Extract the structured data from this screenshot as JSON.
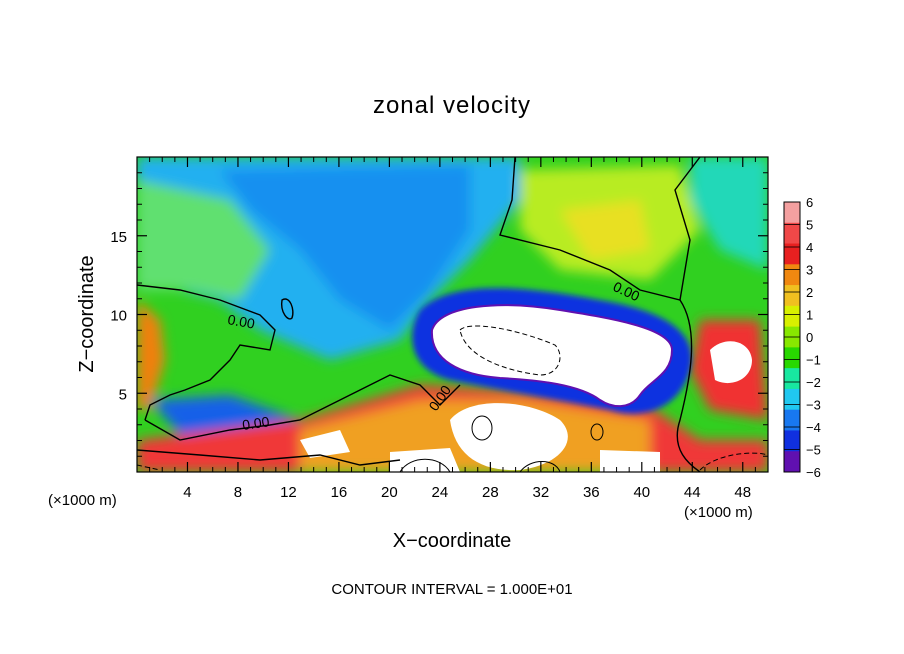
{
  "chart_data": {
    "type": "heatmap",
    "title": "zonal velocity",
    "xlabel": "X−coordinate",
    "ylabel": "Z−coordinate",
    "x_unit_left": "(×1000 m)",
    "x_unit_right": "(×1000 m)",
    "footer": "CONTOUR INTERVAL = 1.000E+01",
    "xlim": [
      0,
      50
    ],
    "ylim": [
      0,
      20
    ],
    "x_ticks": [
      4,
      8,
      12,
      16,
      20,
      24,
      28,
      32,
      36,
      40,
      44,
      48
    ],
    "y_ticks": [
      5,
      10,
      15
    ],
    "colorbar": {
      "min": -6,
      "max": 6,
      "ticks": [
        "6",
        "5",
        "4",
        "3",
        "2",
        "1",
        "0",
        "−1",
        "−2",
        "−3",
        "−4",
        "−5",
        "−6"
      ],
      "colors": [
        "#f4a0a0",
        "#f04848",
        "#e82020",
        "#f08810",
        "#f0c020",
        "#d8f000",
        "#88e800",
        "#28d800",
        "#18e8a0",
        "#20c8f0",
        "#1878f0",
        "#1030e0",
        "#6010b0"
      ]
    },
    "contour_labels": [
      "0.00",
      "0.00",
      "0.00",
      "0.00"
    ],
    "features": [
      {
        "kind": "min",
        "x": 30,
        "z": 7.5,
        "value": "below -6"
      },
      {
        "kind": "max",
        "x": 48,
        "z": 6.5,
        "value": "above 6"
      },
      {
        "kind": "max",
        "x": 30,
        "z": 2,
        "value": "above 6"
      }
    ]
  }
}
